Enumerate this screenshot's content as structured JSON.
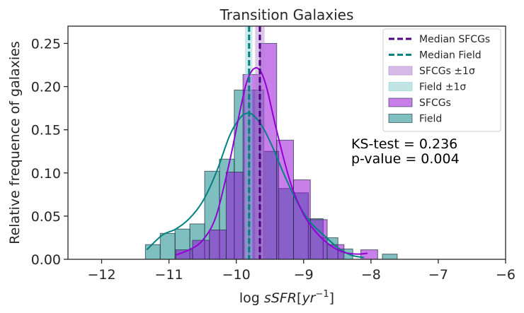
{
  "chart_data": {
    "type": "histogram",
    "title": "Transition Galaxies",
    "xlabel": {
      "prefix": "log ",
      "italic": "sSFR",
      "unit_open": "[",
      "unit_base": "yr",
      "unit_exp": "−1",
      "unit_close": "]"
    },
    "ylabel": "Relative frequence of galaxies",
    "xlim": [
      -12.5,
      -6.0
    ],
    "ylim": [
      0.0,
      0.27
    ],
    "xticks": [
      -12,
      -11,
      -10,
      -9,
      -8,
      -7,
      -6
    ],
    "xtick_labels": [
      "−12",
      "−11",
      "−10",
      "−9",
      "−8",
      "−7",
      "−6"
    ],
    "yticks": [
      0.0,
      0.05,
      0.1,
      0.15,
      0.2,
      0.25
    ],
    "ytick_labels": [
      "0.00",
      "0.05",
      "0.10",
      "0.15",
      "0.20",
      "0.25"
    ],
    "series": [
      {
        "name": "Field",
        "color": "#008080",
        "edges": [
          -11.35,
          -11.13,
          -10.91,
          -10.69,
          -10.47,
          -10.25,
          -10.03,
          -9.81,
          -9.59,
          -9.37,
          -9.15,
          -8.93,
          -8.71,
          -8.49,
          -8.27,
          -8.05,
          -7.83,
          -7.61
        ],
        "values": [
          0.017,
          0.03,
          0.035,
          0.041,
          0.102,
          0.116,
          0.196,
          0.196,
          0.125,
          0.082,
          0.077,
          0.047,
          0.025,
          0.012,
          0.0,
          0.0,
          0.006
        ]
      },
      {
        "name": "SFCGs",
        "color": "#9400d3",
        "edges": [
          -10.9,
          -10.65,
          -10.4,
          -10.15,
          -9.9,
          -9.65,
          -9.4,
          -9.15,
          -8.9,
          -8.65,
          -8.4,
          -8.15,
          -7.9
        ],
        "values": [
          0.011,
          0.022,
          0.034,
          0.101,
          0.214,
          0.25,
          0.138,
          0.092,
          0.046,
          0.017,
          0.0,
          0.011
        ]
      }
    ],
    "kde": [
      {
        "name": "Field KDE",
        "color": "#008080",
        "x": [
          -11.33,
          -11.1,
          -10.9,
          -10.7,
          -10.5,
          -10.3,
          -10.1,
          -9.95,
          -9.85,
          -9.75,
          -9.6,
          -9.45,
          -9.3,
          -9.1,
          -8.9,
          -8.7,
          -8.5,
          -8.3,
          -8.1
        ],
        "y": [
          0.011,
          0.028,
          0.035,
          0.047,
          0.067,
          0.1,
          0.143,
          0.163,
          0.169,
          0.167,
          0.152,
          0.128,
          0.1,
          0.067,
          0.043,
          0.028,
          0.014,
          0.005,
          0.002
        ]
      },
      {
        "name": "SFCGs KDE",
        "color": "#9400d3",
        "x": [
          -10.9,
          -10.7,
          -10.5,
          -10.3,
          -10.1,
          -9.95,
          -9.85,
          -9.75,
          -9.65,
          -9.55,
          -9.4,
          -9.2,
          -9.0,
          -8.8,
          -8.6,
          -8.4,
          -8.2,
          -8.05
        ],
        "y": [
          0.005,
          0.011,
          0.022,
          0.05,
          0.113,
          0.17,
          0.204,
          0.22,
          0.219,
          0.199,
          0.149,
          0.09,
          0.052,
          0.03,
          0.016,
          0.008,
          0.006,
          0.007
        ]
      }
    ],
    "medians": [
      {
        "name": "Median SFCGs",
        "x": -9.65,
        "color": "#4b0082",
        "band": [
          -9.72,
          -9.58
        ],
        "band_name": "SFCGs ±1σ",
        "band_color": "#b384d1"
      },
      {
        "name": "Median Field",
        "x": -9.81,
        "color": "#008080",
        "band": [
          -9.87,
          -9.76
        ],
        "band_name": "Field ±1σ",
        "band_color": "#8ed0d0"
      }
    ],
    "legend": [
      "Median SFCGs",
      "Median Field",
      "SFCGs ±1σ",
      "Field ±1σ",
      "SFCGs",
      "Field"
    ],
    "legend_position": "upper-right",
    "annotation": [
      "KS-test = 0.236",
      "p-value = 0.004"
    ]
  }
}
